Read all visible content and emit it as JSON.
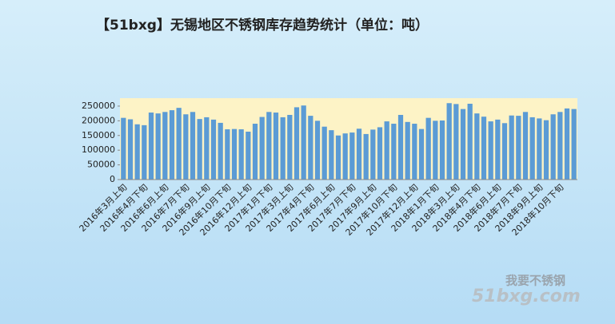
{
  "chart_data": {
    "type": "bar",
    "title": "【51bxg】无锡地区不锈钢库存趋势统计（单位：吨）",
    "categories": [
      "2016年3月上旬",
      null,
      null,
      "2016年4月下旬",
      null,
      null,
      "2016年6月上旬",
      null,
      null,
      "2016年7月下旬",
      null,
      null,
      "2016年9月上旬",
      null,
      null,
      "2016年10月下旬",
      null,
      null,
      "2016年12月上旬",
      null,
      null,
      "2017年1月下旬",
      null,
      null,
      "2017年3月上旬",
      null,
      null,
      "2017年4月下旬",
      null,
      null,
      "2017年6月上旬",
      null,
      null,
      "2017年7月下旬",
      null,
      null,
      "2017年9月上旬",
      null,
      null,
      "2017年10月下旬",
      null,
      null,
      "2017年12月上旬",
      null,
      null,
      "2018年1月下旬",
      null,
      null,
      "2018年3月上旬",
      null,
      null,
      "2018年4月下旬",
      null,
      null,
      "2018年6月上旬",
      null,
      null,
      "2018年7月下旬",
      null,
      null,
      "2018年9月上旬",
      null,
      null,
      "2018年10月下旬",
      null,
      null
    ],
    "values": [
      210000,
      205000,
      188000,
      185000,
      228000,
      225000,
      230000,
      236000,
      244000,
      222000,
      230000,
      206000,
      212000,
      204000,
      193000,
      171000,
      172000,
      171000,
      163000,
      190000,
      213000,
      230000,
      228000,
      212000,
      220000,
      246000,
      252000,
      217000,
      200000,
      180000,
      168000,
      150000,
      157000,
      160000,
      173000,
      155000,
      170000,
      178000,
      198000,
      190000,
      220000,
      196000,
      190000,
      172000,
      210000,
      200000,
      201000,
      260000,
      257000,
      240000,
      258000,
      225000,
      214000,
      198000,
      204000,
      192000,
      218000,
      217000,
      230000,
      212000,
      208000,
      202000,
      222000,
      230000,
      242000,
      240000
    ],
    "color": "#5b9bd5",
    "ylim": [
      0,
      277000
    ],
    "yticks": [
      0,
      50000,
      100000,
      150000,
      200000,
      250000
    ],
    "watermark": {
      "text": "我要不锈钢",
      "url": "51bxg.com"
    }
  }
}
